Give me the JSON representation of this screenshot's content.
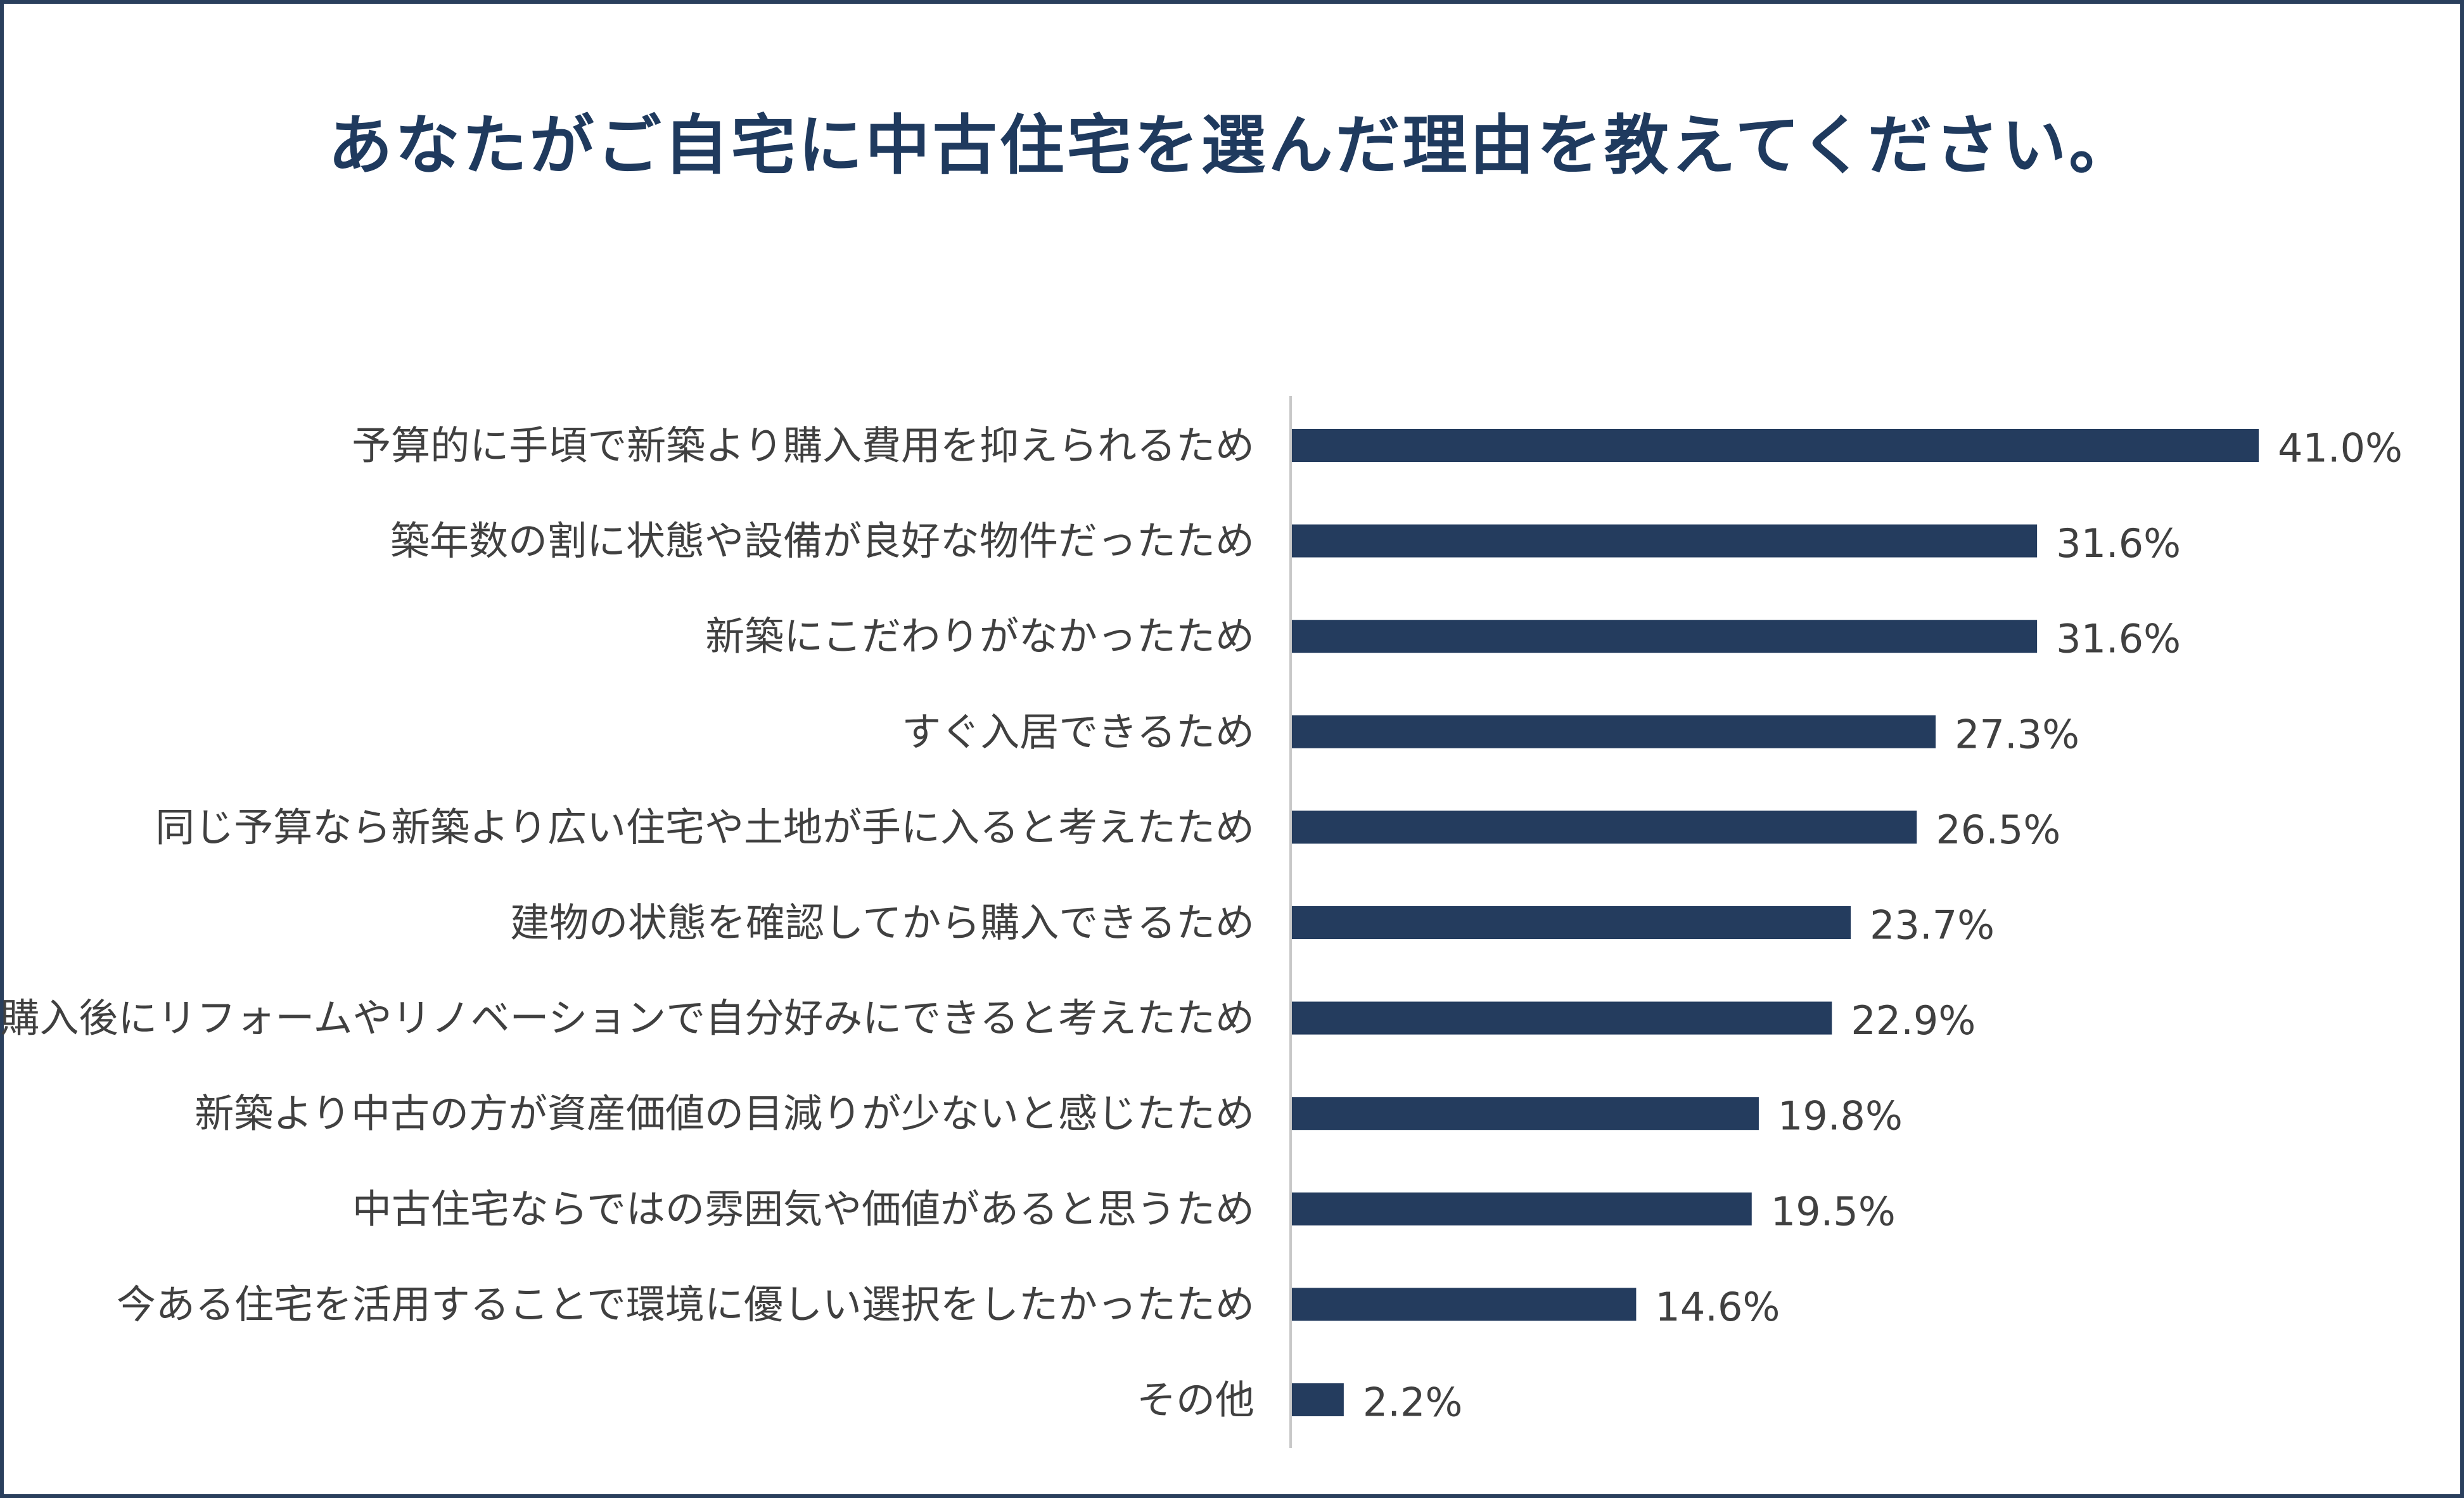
{
  "chart_data": {
    "type": "bar",
    "orientation": "horizontal",
    "title": "あなたがご自宅に中古住宅を選んだ理由を教えてください。",
    "categories": [
      "予算的に手頃で新築より購入費用を抑えられるため",
      "築年数の割に状態や設備が良好な物件だったため",
      "新築にこだわりがなかったため",
      "すぐ入居できるため",
      "同じ予算なら新築より広い住宅や土地が手に入ると考えたため",
      "建物の状態を確認してから購入できるため",
      "購入後にリフォームやリノベーションで自分好みにできると考えたため",
      "新築より中古の方が資産価値の目減りが少ないと感じたため",
      "中古住宅ならではの雰囲気や価値があると思うため",
      "今ある住宅を活用することで環境に優しい選択をしたかったため",
      "その他"
    ],
    "values": [
      41.0,
      31.6,
      31.6,
      27.3,
      26.5,
      23.7,
      22.9,
      19.8,
      19.5,
      14.6,
      2.2
    ],
    "value_labels": [
      "41.0%",
      "31.6%",
      "31.6%",
      "27.3%",
      "26.5%",
      "23.7%",
      "22.9%",
      "19.8%",
      "19.5%",
      "14.6%",
      "2.2%"
    ],
    "unit": "%",
    "xlim": [
      0,
      42.5
    ],
    "grid": false,
    "legend": "none",
    "colors": {
      "bar": "#243c5e",
      "title": "#1f3a5e",
      "frame": "#2a3f5d",
      "axis": "#c8c8c8",
      "text": "#404040"
    }
  }
}
